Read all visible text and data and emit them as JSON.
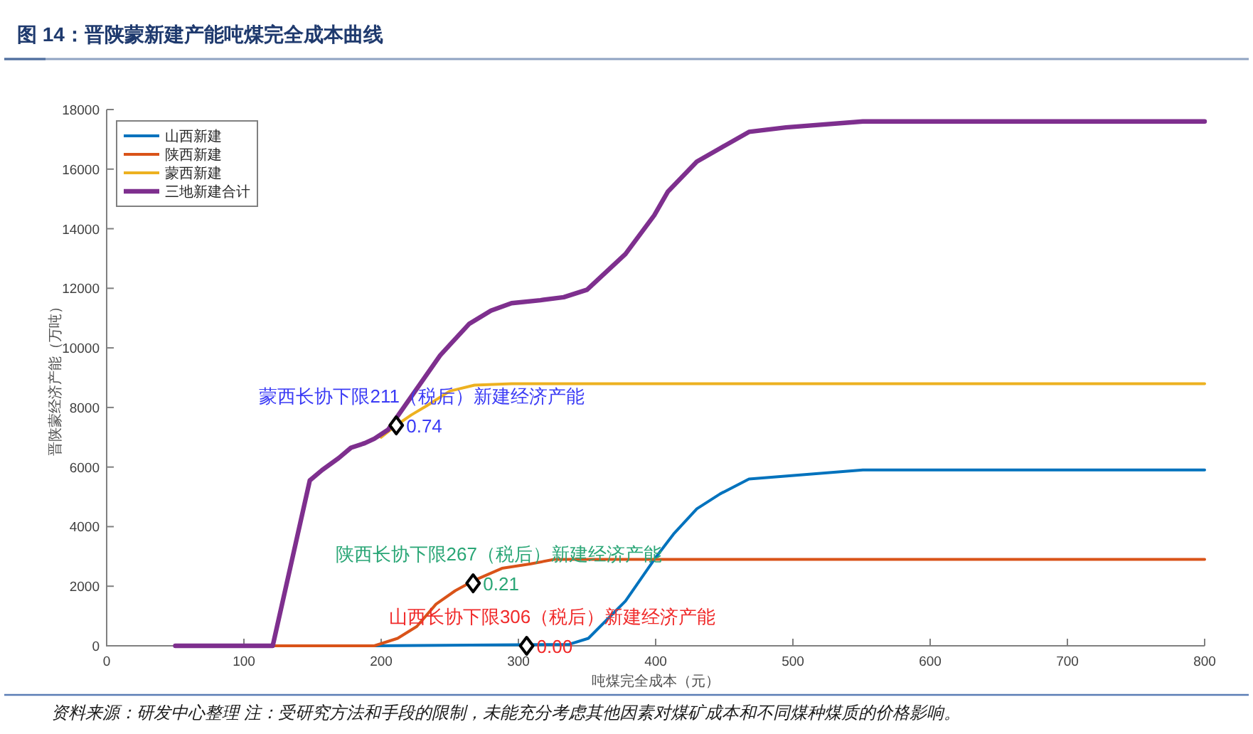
{
  "chart_data": {
    "type": "line",
    "title": "图 14：晋陕蒙新建产能吨煤完全成本曲线",
    "xlabel": "吨煤完全成本（元）",
    "ylabel": "晋陕蒙经济产能（万吨）",
    "xlim": [
      0,
      800
    ],
    "xticks": [
      0,
      100,
      200,
      300,
      400,
      500,
      600,
      700,
      800
    ],
    "ylim": [
      0,
      18000
    ],
    "yticks": [
      0,
      2000,
      4000,
      6000,
      8000,
      10000,
      12000,
      14000,
      16000,
      18000
    ],
    "legend": "top left",
    "series": [
      {
        "name": "山西新建",
        "color": "#0072bd",
        "x": [
          195,
          337,
          351,
          378,
          399,
          413,
          430,
          447,
          468,
          551,
          800
        ],
        "values": [
          0,
          50,
          250,
          1500,
          2900,
          3750,
          4600,
          5100,
          5600,
          5900,
          5900
        ]
      },
      {
        "name": "陕西新建",
        "color": "#d95319",
        "x": [
          121,
          195,
          212,
          226,
          240,
          254,
          268,
          288,
          309,
          326,
          800
        ],
        "values": [
          0,
          0,
          250,
          650,
          1400,
          1850,
          2200,
          2600,
          2750,
          2900,
          2900
        ]
      },
      {
        "name": "蒙西新建",
        "color": "#edb120",
        "x": [
          200,
          211,
          222,
          233,
          250,
          268,
          295,
          800
        ],
        "values": [
          7000,
          7400,
          7750,
          8050,
          8550,
          8750,
          8800,
          8800
        ]
      },
      {
        "name": "三地新建合计",
        "color": "#7e2f8e",
        "x": [
          50,
          121,
          148,
          157,
          169,
          178,
          188,
          195,
          205,
          243,
          250,
          264,
          280,
          295,
          316,
          333,
          350,
          378,
          399,
          409,
          430,
          447,
          468,
          495,
          551,
          800
        ],
        "values": [
          0,
          0,
          5550,
          5900,
          6300,
          6650,
          6800,
          6950,
          7250,
          9750,
          10100,
          10800,
          11250,
          11500,
          11600,
          11700,
          11950,
          13150,
          14450,
          15250,
          16250,
          16700,
          17250,
          17400,
          17600,
          17600
        ]
      },
      {
        "type": "scatter",
        "color": "#000000",
        "marker": "diamond",
        "x": [
          211,
          267,
          306
        ],
        "values": [
          7400,
          2100,
          0
        ]
      }
    ],
    "annotations": [
      {
        "text": "蒙西长协下限211（税后）新建经济产能",
        "x": 211,
        "y": 7400
      },
      {
        "text": "0.74",
        "x": 211,
        "y": 7400
      },
      {
        "text": "陕西长协下限267（税后）新建经济产能",
        "x": 267,
        "y": 2100
      },
      {
        "text": "0.21",
        "x": 267,
        "y": 2100
      },
      {
        "text": "山西长协下限306（税后）新建经济产能",
        "x": 306,
        "y": 0
      },
      {
        "text": "0.00",
        "x": 306,
        "y": 0
      },
      "资料来源：研发中心整理 注：受研究方法和手段的限制，未能充分考虑其他因素对煤矿成本和不同煤种煤质的价格影响。"
    ]
  }
}
